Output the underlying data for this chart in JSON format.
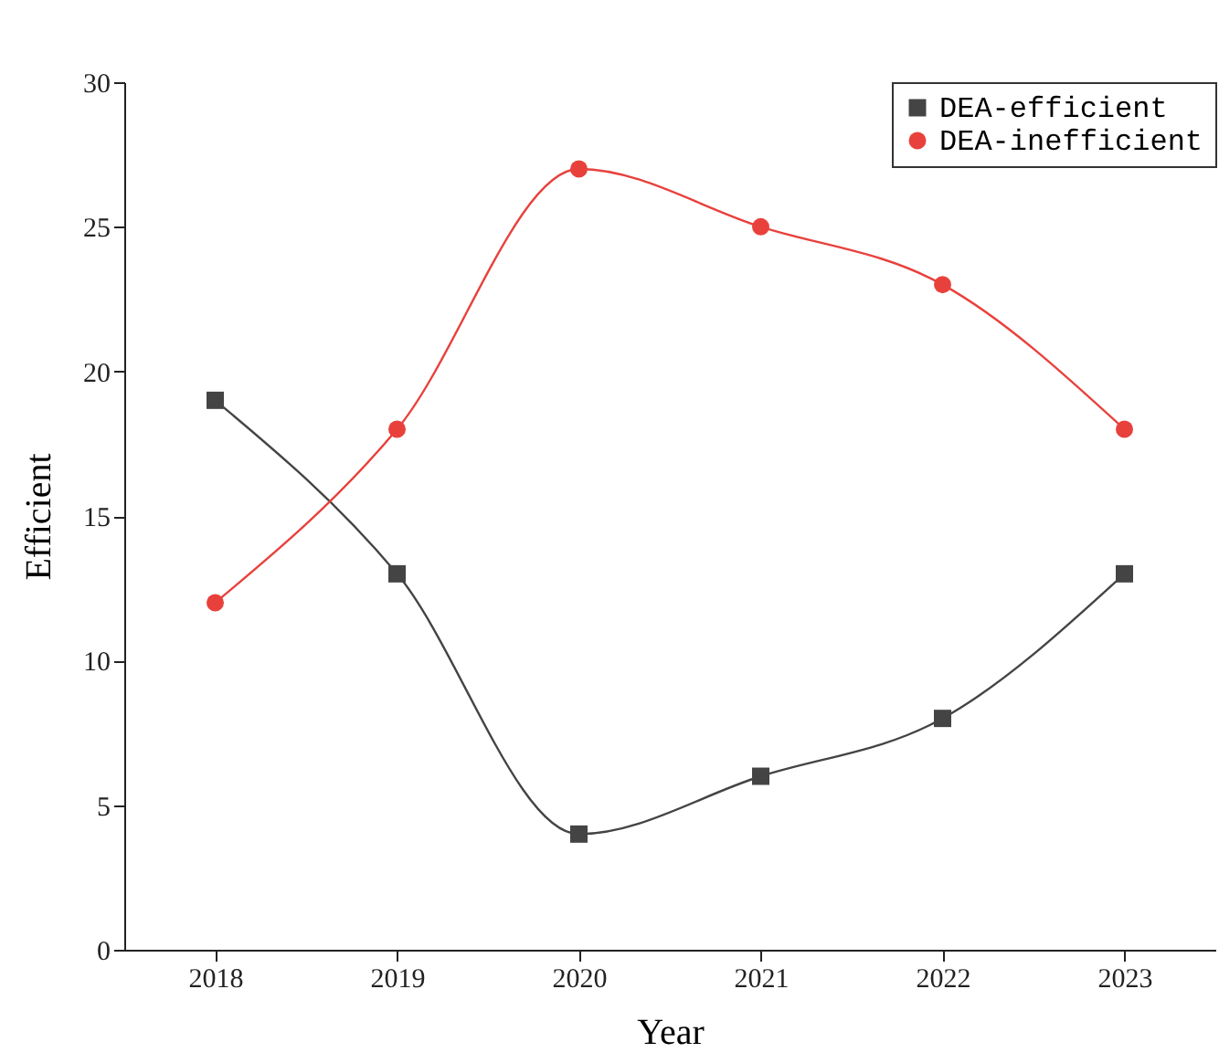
{
  "chart_data": {
    "type": "line",
    "xlabel": "Year",
    "ylabel": "Efficient",
    "categories": [
      "2018",
      "2019",
      "2020",
      "2021",
      "2022",
      "2023"
    ],
    "series": [
      {
        "name": "DEA-efficient",
        "color": "#444444",
        "marker": "square",
        "values": [
          19,
          13,
          4,
          6,
          8,
          13
        ]
      },
      {
        "name": "DEA-inefficient",
        "color": "#e8413c",
        "marker": "circle",
        "values": [
          12,
          18,
          27,
          25,
          23,
          18
        ]
      }
    ],
    "ylim": [
      0,
      30
    ],
    "yticks": [
      0,
      5,
      10,
      15,
      20,
      25,
      30
    ],
    "grid": false,
    "legend": "top right"
  }
}
